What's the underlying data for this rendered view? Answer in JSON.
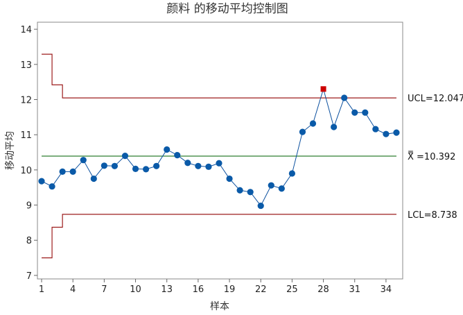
{
  "chart_data": {
    "type": "line",
    "title": "颜料 的移动平均控制图",
    "xlabel": "样本",
    "ylabel": "移动平均",
    "xlim": [
      0.6,
      35.6
    ],
    "ylim": [
      6.9,
      14.2
    ],
    "x_ticks": [
      1,
      4,
      7,
      10,
      13,
      16,
      19,
      22,
      25,
      28,
      31,
      34
    ],
    "y_ticks": [
      7,
      8,
      9,
      10,
      11,
      12,
      13,
      14
    ],
    "grid": false,
    "colors": {
      "series": "#0a4f9e",
      "marker": "#0a5aa8",
      "out_of_control": "#cc0000",
      "limits": "#9c1b1b",
      "center": "#2e7d32"
    },
    "series": [
      {
        "x": [
          1,
          2,
          3,
          4,
          5,
          6,
          7,
          8,
          9,
          10,
          11,
          12,
          13,
          14,
          15,
          16,
          17,
          18,
          19,
          20,
          21,
          22,
          23,
          24,
          25,
          26,
          27,
          28,
          29,
          30,
          31,
          32,
          33,
          34,
          35
        ],
        "values": [
          9.68,
          9.53,
          9.95,
          9.95,
          10.28,
          9.75,
          10.12,
          10.11,
          10.4,
          10.03,
          10.02,
          10.11,
          10.58,
          10.42,
          10.2,
          10.11,
          10.09,
          10.19,
          9.75,
          9.42,
          9.37,
          8.98,
          9.56,
          9.47,
          9.9,
          11.08,
          11.32,
          12.3,
          11.22,
          12.05,
          11.63,
          11.63,
          11.16,
          11.02,
          11.06
        ]
      }
    ],
    "out_of_control_points": [
      28
    ],
    "center_line": {
      "value": 10.392,
      "label": "X̿ =10.392"
    },
    "ucl": {
      "value": 12.047,
      "label": "UCL=12.047",
      "initial_steps": [
        {
          "x_from": 1,
          "x_to": 2,
          "value": 13.29
        },
        {
          "x_from": 2,
          "x_to": 3,
          "value": 12.42
        }
      ]
    },
    "lcl": {
      "value": 8.738,
      "label": "LCL=8.738",
      "initial_steps": [
        {
          "x_from": 1,
          "x_to": 2,
          "value": 7.5
        },
        {
          "x_from": 2,
          "x_to": 3,
          "value": 8.37
        }
      ]
    }
  }
}
